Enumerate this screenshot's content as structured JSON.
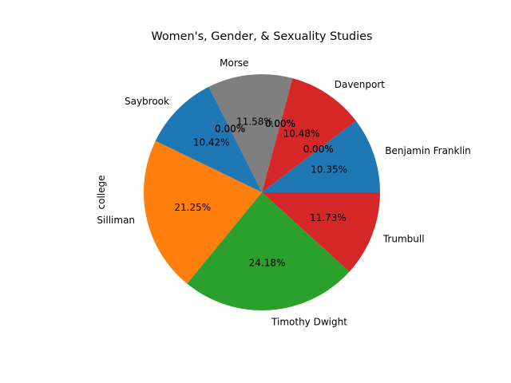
{
  "chart_data": {
    "type": "pie",
    "title": "Women's, Gender, & Sexuality Studies",
    "ylabel": "college",
    "slices": [
      {
        "label": "Benjamin Franklin",
        "value": 10.35,
        "pct_text": "10.35%",
        "color": "#1f77b4"
      },
      {
        "label": "",
        "value": 0,
        "pct_text": "0.00%",
        "color": "#ff7f0e"
      },
      {
        "label": "",
        "value": 0,
        "pct_text": "0.00%",
        "color": "#2ca02c"
      },
      {
        "label": "Davenport",
        "value": 10.48,
        "pct_text": "10.48%",
        "color": "#d62728"
      },
      {
        "label": "",
        "value": 0,
        "pct_text": "0.00%",
        "color": "#9467bd"
      },
      {
        "label": "",
        "value": 0,
        "pct_text": "0.00%",
        "color": "#8c564b"
      },
      {
        "label": "",
        "value": 0,
        "pct_text": "0.00%",
        "color": "#e377c2"
      },
      {
        "label": "Morse",
        "value": 11.58,
        "pct_text": "11.58%",
        "color": "#7f7f7f"
      },
      {
        "label": "",
        "value": 0,
        "pct_text": "0.00%",
        "color": "#bcbd22"
      },
      {
        "label": "",
        "value": 0,
        "pct_text": "0.00%",
        "color": "#17becf"
      },
      {
        "label": "Saybrook",
        "value": 10.42,
        "pct_text": "10.42%",
        "color": "#1f77b4"
      },
      {
        "label": "Silliman",
        "value": 21.25,
        "pct_text": "21.25%",
        "color": "#ff7f0e"
      },
      {
        "label": "Timothy Dwight",
        "value": 24.18,
        "pct_text": "24.18%",
        "color": "#2ca02c"
      },
      {
        "label": "Trumbull",
        "value": 11.73,
        "pct_text": "11.73%",
        "color": "#d62728"
      }
    ]
  }
}
